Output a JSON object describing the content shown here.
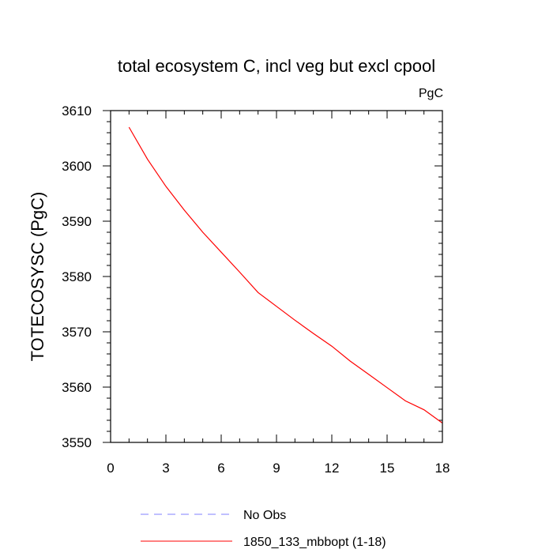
{
  "chart_data": {
    "type": "line",
    "title": "total ecosystem C, incl veg but excl cpool",
    "units_label": "PgC",
    "ylabel": "TOTECOSYSC  (PgC)",
    "xlabel": "",
    "xlim": [
      0,
      18
    ],
    "ylim": [
      3550,
      3610
    ],
    "xticks": [
      0,
      3,
      6,
      9,
      12,
      15,
      18
    ],
    "yticks": [
      3550,
      3560,
      3570,
      3580,
      3590,
      3600,
      3610
    ],
    "series": [
      {
        "name": "1850_133_mbbopt (1-18)",
        "color": "#ff0000",
        "dash": "solid",
        "x": [
          1,
          2,
          3,
          4,
          5,
          6,
          7,
          8,
          9,
          10,
          11,
          12,
          13,
          14,
          15,
          16,
          17,
          18
        ],
        "values": [
          3607.0,
          3601.2,
          3596.3,
          3592.0,
          3588.0,
          3584.4,
          3580.8,
          3577.1,
          3574.6,
          3572.1,
          3569.7,
          3567.4,
          3564.7,
          3562.3,
          3559.9,
          3557.5,
          3555.9,
          3553.5
        ]
      }
    ],
    "legend": [
      {
        "label": "No Obs",
        "color": "#8080ff",
        "dash": "dashed"
      },
      {
        "label": "1850_133_mbbopt (1-18)",
        "color": "#ff0000",
        "dash": "solid"
      }
    ],
    "legend_position": "bottom-center",
    "grid": false
  }
}
